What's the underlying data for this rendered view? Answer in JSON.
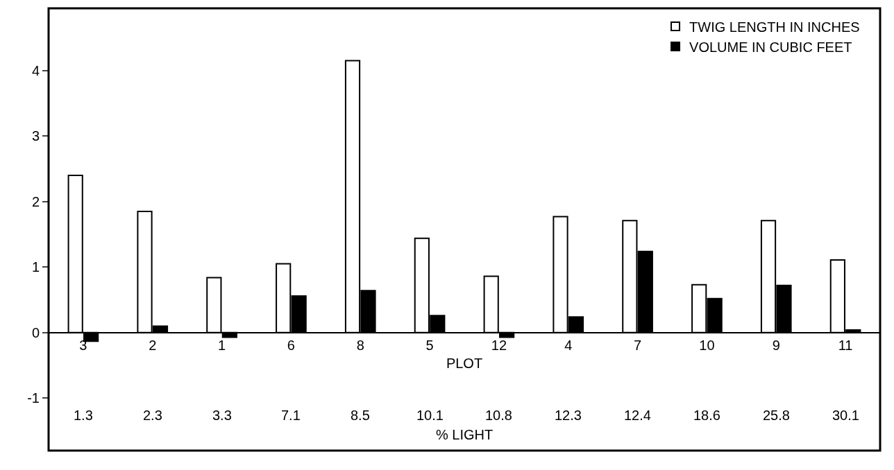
{
  "chart_data": {
    "type": "bar",
    "categories": [
      "3",
      "2",
      "1",
      "6",
      "8",
      "5",
      "12",
      "4",
      "7",
      "10",
      "9",
      "11"
    ],
    "xlabel": "PLOT",
    "annotations": [
      "1.3",
      "2.3",
      "3.3",
      "7.1",
      "8.5",
      "10.1",
      "10.8",
      "12.3",
      "12.4",
      "18.6",
      "25.8",
      "30.1",
      "% LIGHT"
    ],
    "series": [
      {
        "name": "TWIG LENGTH IN INCHES",
        "color": "#ffffff",
        "values": [
          2.4,
          1.85,
          0.84,
          1.05,
          4.15,
          1.44,
          0.86,
          1.77,
          1.71,
          0.73,
          1.71,
          1.11
        ]
      },
      {
        "name": "VOLUME IN CUBIC FEET",
        "color": "#000000",
        "values": [
          -0.13,
          0.1,
          -0.07,
          0.56,
          0.64,
          0.26,
          -0.07,
          0.24,
          1.24,
          0.52,
          0.72,
          0.04
        ]
      }
    ],
    "ylim": [
      -1.8,
      4.95
    ],
    "yticks": [
      -1,
      0,
      1,
      2,
      3,
      4
    ],
    "grid": false,
    "legend": "top right"
  }
}
